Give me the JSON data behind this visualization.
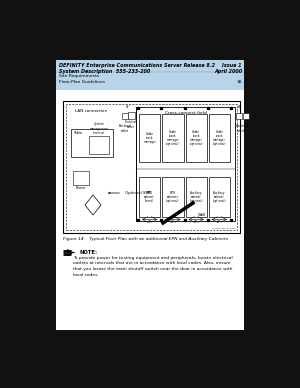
{
  "header_bg": "#b8d4e8",
  "header_title_left": "DEFINITY Enterprise Communications Server Release 8.2\nSystem Description  555-233-200",
  "header_title_right": "Issue 1\nApril 2000",
  "header_sub_left": "Site Requirements\nFloor-Plan Guidelines",
  "header_sub_right": "38",
  "page_bg": "#111111",
  "content_bg": "#ffffff",
  "figure_caption": "Figure 14.   Typical Floor Plan with an additional EPN and Auxiliary Cabinets",
  "note_title": "NOTE:",
  "note_text": "To provide power for testing equipment and peripherals, locate electrical\noutlets at intervals that are in accordance with local codes. Also, ensure\nthat you locate the main shutoff switch near the door in accordance with\nlocal codes."
}
